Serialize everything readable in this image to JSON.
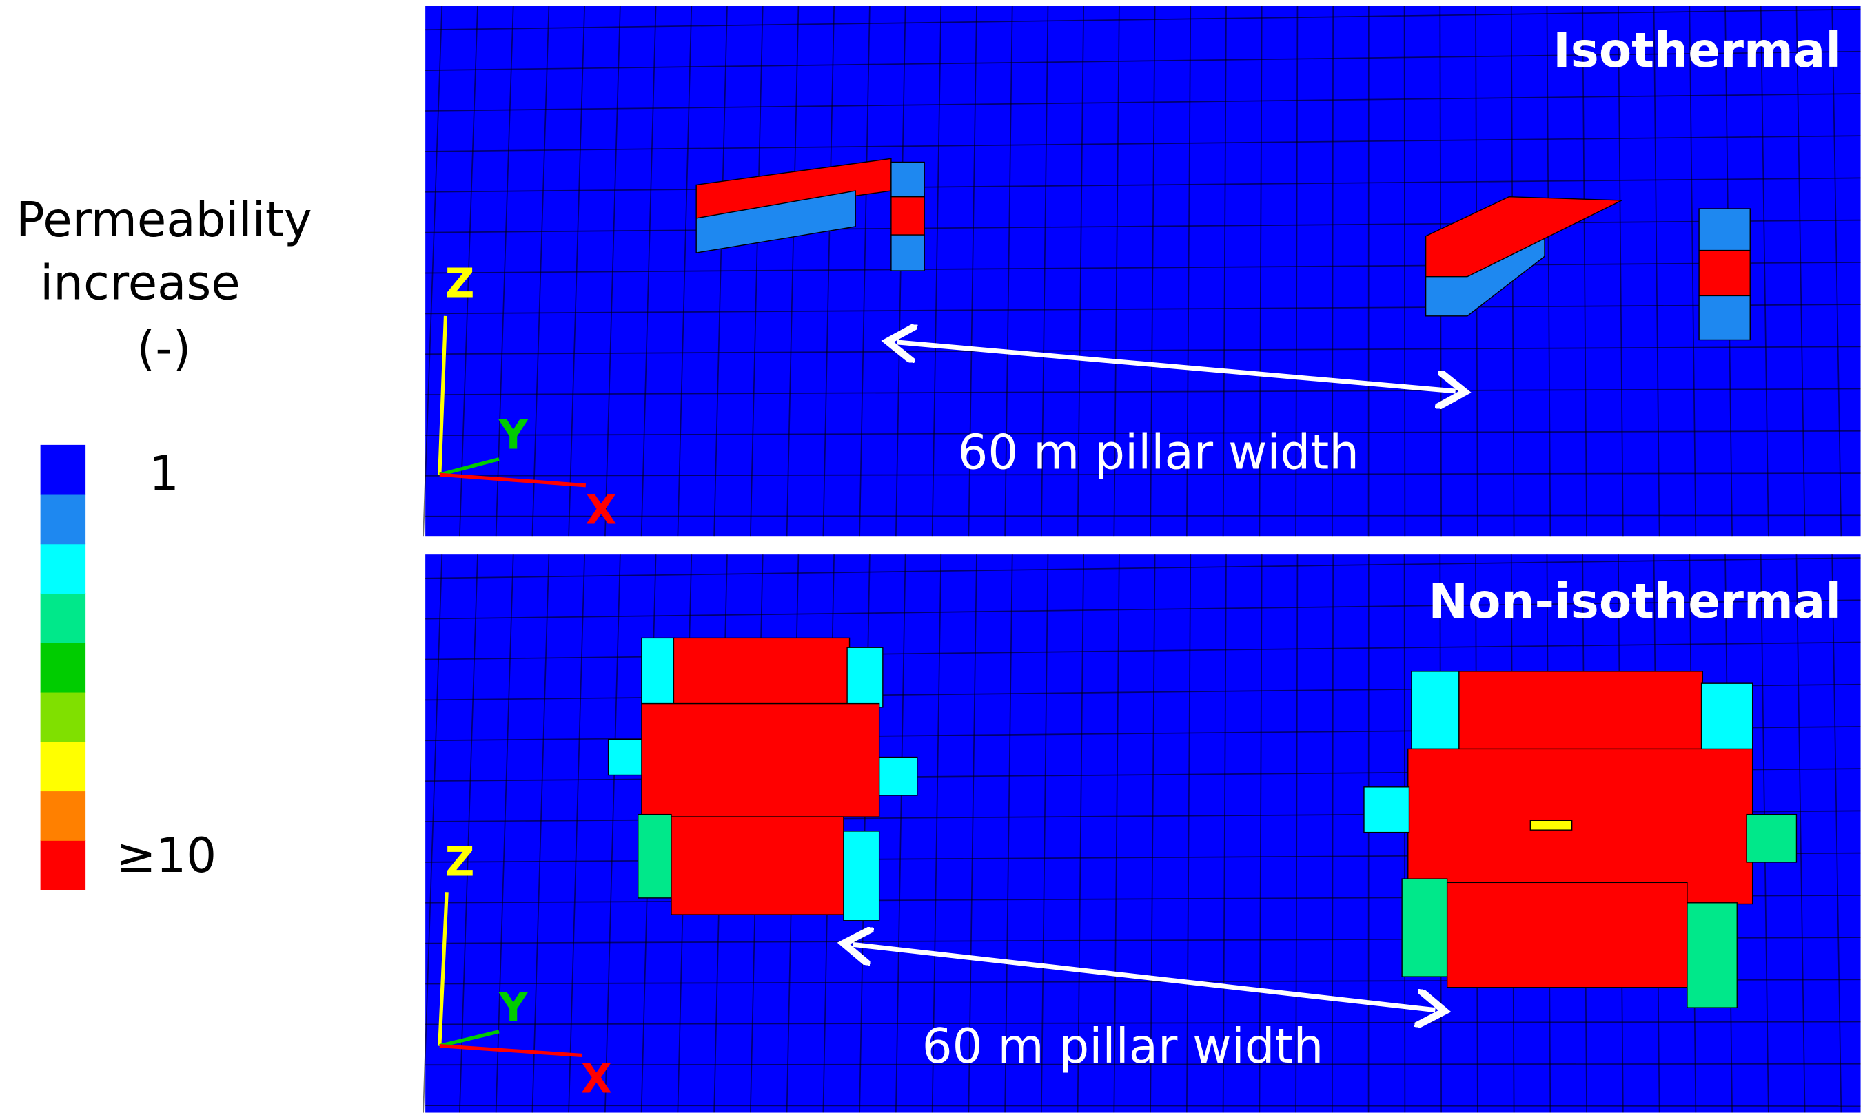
{
  "legend": {
    "title": [
      "Permeability",
      "increase",
      "(-)"
    ],
    "colors": [
      "#0000ff",
      "#1e88f0",
      "#00ffff",
      "#00e88a",
      "#00cc00",
      "#80e000",
      "#ffff00",
      "#ff8000",
      "#ff0000"
    ],
    "min_label": "1",
    "max_label": "≥10"
  },
  "panels": [
    {
      "title": "Isothermal",
      "axes": {
        "z": "Z",
        "y": "Y",
        "x": "X"
      },
      "annotation": "60 m pillar width"
    },
    {
      "title": "Non-isothermal",
      "axes": {
        "z": "Z",
        "y": "Y",
        "x": "X"
      },
      "annotation": "60 m pillar width"
    }
  ]
}
